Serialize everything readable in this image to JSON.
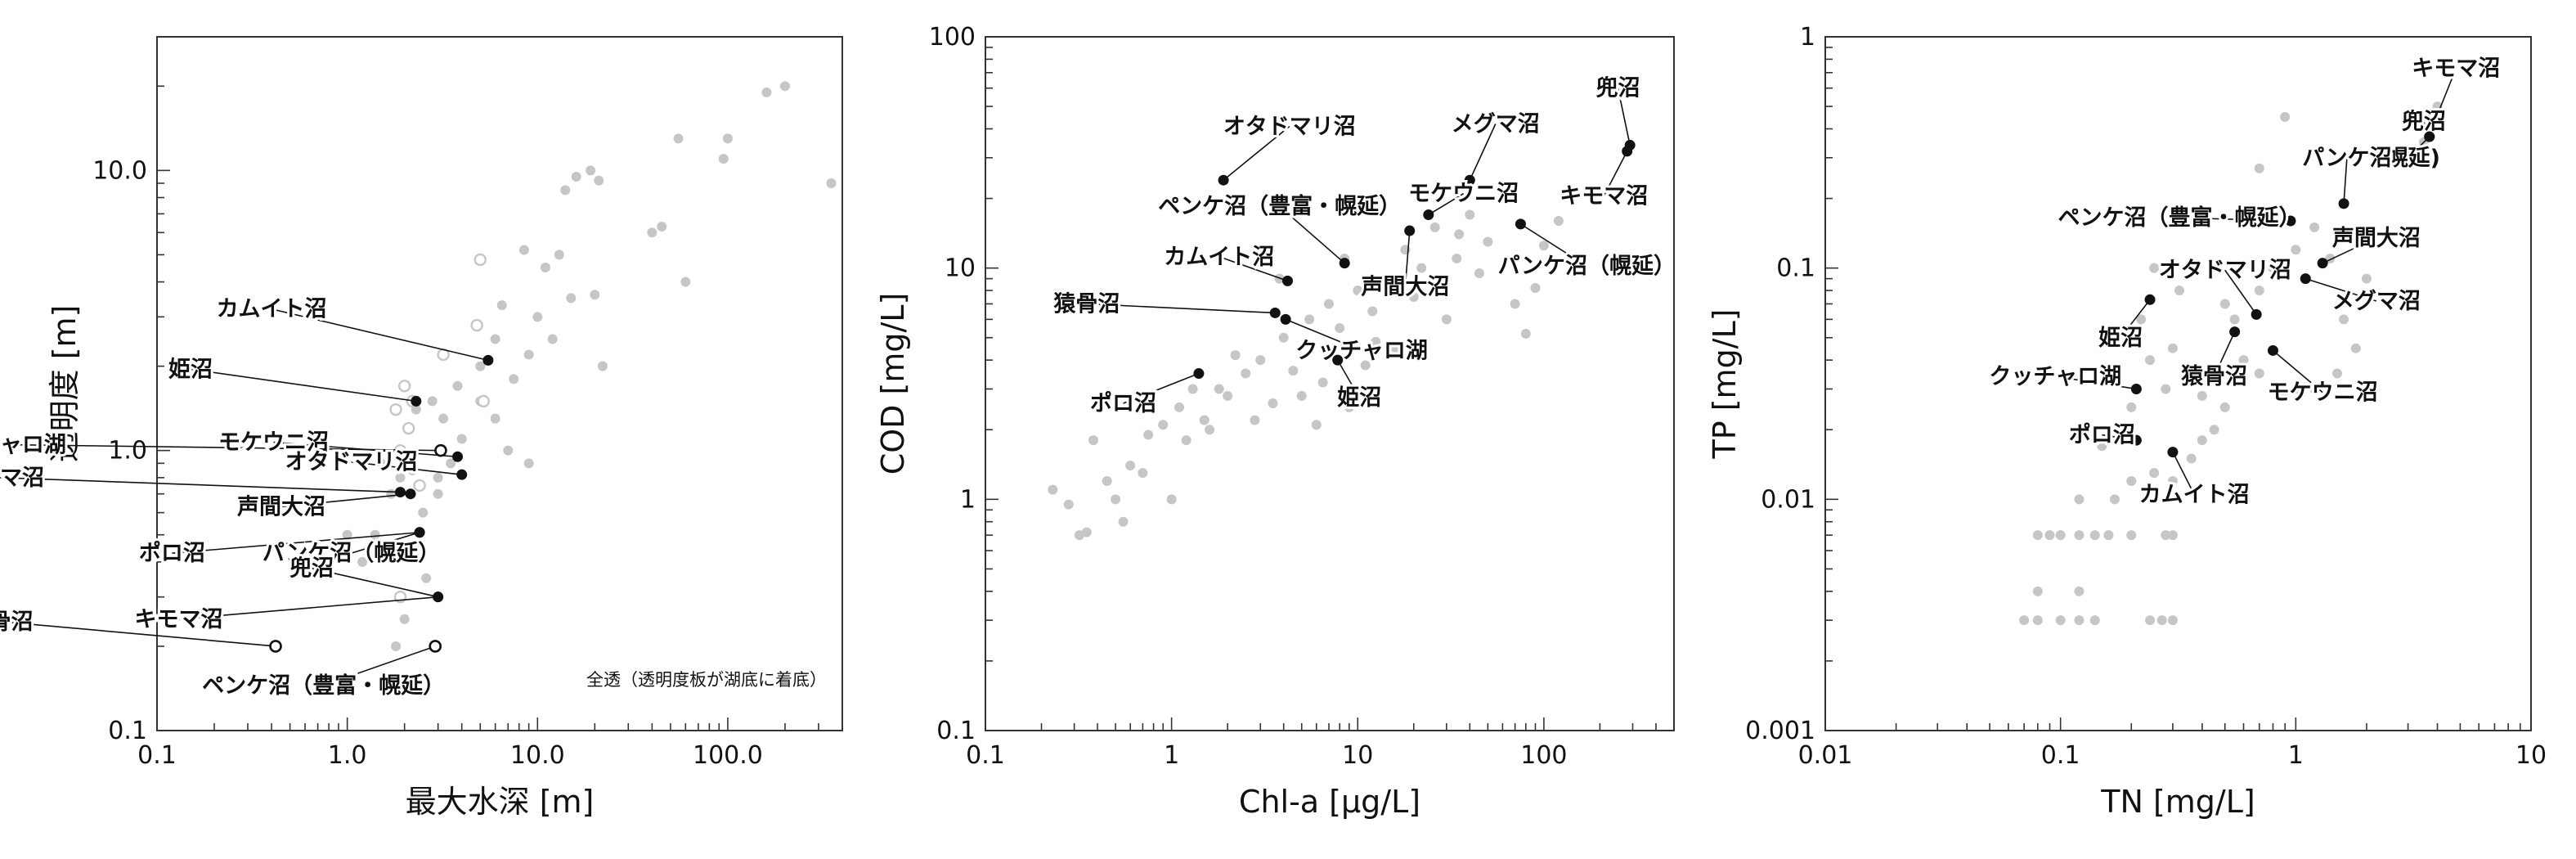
{
  "colors": {
    "highlight": "#111111",
    "background_points": "#c6c6c6",
    "axis": "#333333"
  },
  "chart_data": [
    {
      "type": "scatter",
      "title": "",
      "xlabel": "最大水深 [m]",
      "ylabel": "透明度 [m]",
      "xscale": "log",
      "yscale": "log",
      "xlim": [
        0.1,
        400
      ],
      "ylim": [
        0.1,
        30
      ],
      "xticks": [
        0.1,
        1,
        10,
        100
      ],
      "xtick_labels": [
        "0.1",
        "1.0",
        "10.0",
        "100.0"
      ],
      "yticks": [
        0.1,
        1,
        10
      ],
      "ytick_labels": [
        "0.1",
        "1.0",
        "10.0"
      ],
      "note": "全透（透明度板が湖底に着底）",
      "background_points": [
        [
          1.4,
          0.5
        ],
        [
          1.5,
          0.9
        ],
        [
          1.7,
          0.7
        ],
        [
          1.9,
          0.8
        ],
        [
          2.2,
          0.85
        ],
        [
          2.5,
          0.6
        ],
        [
          3.0,
          0.7
        ],
        [
          3.5,
          0.9
        ],
        [
          4.0,
          1.1
        ],
        [
          3.2,
          1.3
        ],
        [
          2.3,
          1.4
        ],
        [
          2.8,
          1.5
        ],
        [
          3.8,
          1.7
        ],
        [
          5.0,
          1.5
        ],
        [
          6.0,
          1.3
        ],
        [
          7.5,
          1.8
        ],
        [
          9.0,
          2.2
        ],
        [
          10.0,
          3.0
        ],
        [
          12.0,
          2.5
        ],
        [
          15.0,
          3.5
        ],
        [
          16.0,
          9.5
        ],
        [
          19.0,
          10.0
        ],
        [
          21.0,
          9.2
        ],
        [
          14.0,
          8.5
        ],
        [
          13.0,
          5.0
        ],
        [
          11.0,
          4.5
        ],
        [
          8.5,
          5.2
        ],
        [
          6.5,
          3.3
        ],
        [
          7.0,
          1.0
        ],
        [
          9.0,
          0.9
        ],
        [
          22.0,
          2.0
        ],
        [
          20.0,
          3.6
        ],
        [
          40.0,
          6.0
        ],
        [
          45.0,
          6.3
        ],
        [
          55.0,
          13.0
        ],
        [
          60.0,
          4.0
        ],
        [
          95.0,
          11.0
        ],
        [
          100.0,
          13.0
        ],
        [
          160.0,
          19.0
        ],
        [
          200.0,
          20.0
        ],
        [
          350.0,
          9.0
        ],
        [
          1.8,
          0.2
        ],
        [
          2.0,
          0.25
        ],
        [
          1.0,
          0.5
        ],
        [
          1.2,
          0.4
        ],
        [
          1.9,
          0.45
        ],
        [
          2.6,
          0.35
        ],
        [
          3.0,
          0.8
        ],
        [
          5.0,
          2.0
        ],
        [
          6.0,
          2.5
        ]
      ],
      "open_points": [
        [
          1.9,
          1.0
        ],
        [
          2.1,
          1.2
        ],
        [
          1.8,
          1.4
        ],
        [
          2.2,
          1.5
        ],
        [
          2.0,
          1.7
        ],
        [
          3.2,
          2.2
        ],
        [
          4.8,
          2.8
        ],
        [
          2.4,
          0.75
        ],
        [
          1.9,
          0.3
        ],
        [
          5.0,
          4.8
        ],
        [
          5.2,
          1.5
        ]
      ],
      "highlight_points": [
        {
          "label": "カムイト沼",
          "x": 5.5,
          "y": 2.1,
          "tx": 0.4,
          "ty": 3.2,
          "anchor": "middle",
          "open": false
        },
        {
          "label": "姫沼",
          "x": 2.3,
          "y": 1.5,
          "tx": 0.15,
          "ty": 1.95,
          "anchor": "middle",
          "open": false
        },
        {
          "label": "モケウニ沼",
          "x": 3.8,
          "y": 0.95,
          "tx": 0.41,
          "ty": 1.07,
          "anchor": "middle",
          "open": false
        },
        {
          "label": "クッチャロ湖",
          "x": 3.1,
          "y": 1.0,
          "tx": -0.29,
          "ty": 1.05,
          "anchor": "middle",
          "open": true
        },
        {
          "label": "オタドマリ沼",
          "x": 4.0,
          "y": 0.82,
          "tx": 1.05,
          "ty": 0.91,
          "anchor": "middle",
          "open": false
        },
        {
          "label": "メグマ沼",
          "x": 1.9,
          "y": 0.71,
          "tx": -0.04,
          "ty": 0.8,
          "anchor": "middle",
          "open": false
        },
        {
          "label": "声間大沼",
          "x": 2.15,
          "y": 0.7,
          "tx": 0.45,
          "ty": 0.63,
          "anchor": "middle",
          "open": false
        },
        {
          "label": "パンケ沼（幌延）",
          "x": 2.4,
          "y": 0.51,
          "tx": 1.05,
          "ty": 0.43,
          "anchor": "middle",
          "open": false
        },
        {
          "label": "ポロ沼",
          "x": 2.4,
          "y": 0.51,
          "tx": 0.12,
          "ty": 0.43,
          "anchor": "middle",
          "open": false
        },
        {
          "label": "兜沼",
          "x": 3.0,
          "y": 0.3,
          "tx": 0.65,
          "ty": 0.38,
          "anchor": "middle",
          "open": false
        },
        {
          "label": "キモマ沼",
          "x": 3.0,
          "y": 0.3,
          "tx": 0.13,
          "ty": 0.25,
          "anchor": "middle",
          "open": false
        },
        {
          "label": "猿骨沼",
          "x": 0.42,
          "y": 0.2,
          "tx": -0.56,
          "ty": 0.245,
          "anchor": "middle",
          "open": true
        },
        {
          "label": "ペンケ沼（豊富・幌延）",
          "x": 2.9,
          "y": 0.2,
          "tx": 0.75,
          "ty": 0.145,
          "anchor": "middle",
          "open": true
        }
      ]
    },
    {
      "type": "scatter",
      "title": "",
      "xlabel": "Chl-a [μg/L]",
      "ylabel": "COD [mg/L]",
      "xscale": "log",
      "yscale": "log",
      "xlim": [
        0.1,
        500
      ],
      "ylim": [
        0.1,
        100
      ],
      "xticks": [
        0.1,
        1,
        10,
        100
      ],
      "xtick_labels": [
        "0.1",
        "1",
        "10",
        "100"
      ],
      "yticks": [
        0.1,
        1,
        10,
        100
      ],
      "ytick_labels": [
        "0.1",
        "1",
        "10",
        "100"
      ],
      "background_points": [
        [
          0.23,
          1.1
        ],
        [
          0.28,
          0.95
        ],
        [
          0.32,
          0.7
        ],
        [
          0.38,
          1.8
        ],
        [
          0.45,
          1.2
        ],
        [
          0.5,
          1.0
        ],
        [
          0.55,
          0.8
        ],
        [
          0.6,
          1.4
        ],
        [
          0.7,
          1.3
        ],
        [
          0.75,
          1.9
        ],
        [
          0.9,
          2.1
        ],
        [
          1.0,
          1.0
        ],
        [
          1.1,
          2.5
        ],
        [
          1.2,
          1.8
        ],
        [
          1.5,
          2.2
        ],
        [
          1.8,
          3.0
        ],
        [
          2.0,
          2.8
        ],
        [
          2.5,
          3.5
        ],
        [
          2.8,
          2.2
        ],
        [
          3.0,
          4.0
        ],
        [
          3.5,
          2.6
        ],
        [
          4.0,
          5.0
        ],
        [
          4.5,
          3.6
        ],
        [
          5.0,
          2.8
        ],
        [
          5.5,
          6.0
        ],
        [
          6.0,
          2.1
        ],
        [
          7.0,
          7.0
        ],
        [
          8.0,
          5.5
        ],
        [
          9.0,
          2.5
        ],
        [
          10.0,
          8.0
        ],
        [
          11.0,
          3.8
        ],
        [
          12.0,
          6.5
        ],
        [
          14.0,
          9.0
        ],
        [
          16.0,
          4.5
        ],
        [
          18.0,
          12.0
        ],
        [
          20.0,
          7.5
        ],
        [
          22.0,
          10.0
        ],
        [
          26.0,
          15.0
        ],
        [
          30.0,
          6.0
        ],
        [
          34.0,
          11.0
        ],
        [
          40.0,
          17.0
        ],
        [
          45.0,
          9.5
        ],
        [
          50.0,
          13.0
        ],
        [
          60.0,
          20.0
        ],
        [
          70.0,
          7.0
        ],
        [
          80.0,
          5.2
        ],
        [
          90.0,
          8.2
        ],
        [
          100.0,
          12.5
        ],
        [
          120.0,
          16.0
        ],
        [
          150.0,
          21.0
        ],
        [
          8.5,
          11.0
        ],
        [
          3.8,
          9.0
        ],
        [
          1.3,
          3.0
        ],
        [
          2.2,
          4.2
        ],
        [
          6.5,
          3.2
        ],
        [
          12.5,
          4.8
        ],
        [
          15.0,
          8.5
        ],
        [
          35.0,
          14.0
        ],
        [
          0.35,
          0.72
        ],
        [
          1.6,
          2.0
        ]
      ],
      "open_points": [],
      "highlight_points": [
        {
          "label": "兜沼",
          "x": 290,
          "y": 34,
          "tx": 250,
          "ty": 60,
          "anchor": "middle",
          "open": false
        },
        {
          "label": "キモマ沼",
          "x": 280,
          "y": 32,
          "tx": 210,
          "ty": 20.5,
          "anchor": "middle",
          "open": false
        },
        {
          "label": "オタドマリ沼",
          "x": 1.9,
          "y": 24,
          "tx": 4.3,
          "ty": 41,
          "anchor": "middle",
          "open": false
        },
        {
          "label": "メグマ沼",
          "x": 40,
          "y": 24,
          "tx": 55,
          "ty": 42,
          "anchor": "middle",
          "open": false
        },
        {
          "label": "ペンケ沼（豊富・幌延）",
          "x": 8.5,
          "y": 10.5,
          "tx": 3.8,
          "ty": 18.5,
          "anchor": "middle",
          "open": false
        },
        {
          "label": "モケウニ沼",
          "x": 24,
          "y": 17,
          "tx": 37,
          "ty": 21,
          "anchor": "middle",
          "open": false
        },
        {
          "label": "パンケ沼（幌延）",
          "x": 75,
          "y": 15.5,
          "tx": 170,
          "ty": 10.2,
          "anchor": "middle",
          "open": false
        },
        {
          "label": "カムイト沼",
          "x": 4.2,
          "y": 8.8,
          "tx": 1.8,
          "ty": 11.2,
          "anchor": "middle",
          "open": false
        },
        {
          "label": "声間大沼",
          "x": 19,
          "y": 14.5,
          "tx": 18,
          "ty": 8.3,
          "anchor": "middle",
          "open": false
        },
        {
          "label": "猿骨沼",
          "x": 3.6,
          "y": 6.4,
          "tx": 0.35,
          "ty": 7.0,
          "anchor": "middle",
          "open": false
        },
        {
          "label": "クッチャロ湖",
          "x": 4.1,
          "y": 6.0,
          "tx": 10.5,
          "ty": 4.4,
          "anchor": "middle",
          "open": false
        },
        {
          "label": "姫沼",
          "x": 7.8,
          "y": 4.0,
          "tx": 10.2,
          "ty": 2.75,
          "anchor": "middle",
          "open": false
        },
        {
          "label": "ポロ沼",
          "x": 1.4,
          "y": 3.5,
          "tx": 0.55,
          "ty": 2.6,
          "anchor": "middle",
          "open": false
        }
      ]
    },
    {
      "type": "scatter",
      "title": "",
      "xlabel": "TN [mg/L]",
      "ylabel": "TP [mg/L]",
      "xscale": "log",
      "yscale": "log",
      "xlim": [
        0.01,
        10
      ],
      "ylim": [
        0.001,
        1
      ],
      "xticks": [
        0.01,
        0.1,
        1,
        10
      ],
      "xtick_labels": [
        "0.01",
        "0.1",
        "1",
        "10"
      ],
      "yticks": [
        0.001,
        0.01,
        0.1,
        1
      ],
      "ytick_labels": [
        "0.001",
        "0.01",
        "0.1",
        "1"
      ],
      "background_points": [
        [
          0.07,
          0.003
        ],
        [
          0.08,
          0.003
        ],
        [
          0.1,
          0.003
        ],
        [
          0.12,
          0.003
        ],
        [
          0.14,
          0.003
        ],
        [
          0.24,
          0.003
        ],
        [
          0.27,
          0.003
        ],
        [
          0.3,
          0.003
        ],
        [
          0.08,
          0.004
        ],
        [
          0.12,
          0.004
        ],
        [
          0.08,
          0.007
        ],
        [
          0.09,
          0.007
        ],
        [
          0.1,
          0.007
        ],
        [
          0.12,
          0.007
        ],
        [
          0.14,
          0.007
        ],
        [
          0.16,
          0.007
        ],
        [
          0.2,
          0.007
        ],
        [
          0.28,
          0.007
        ],
        [
          0.3,
          0.007
        ],
        [
          0.12,
          0.01
        ],
        [
          0.17,
          0.01
        ],
        [
          0.2,
          0.012
        ],
        [
          0.25,
          0.013
        ],
        [
          0.3,
          0.012
        ],
        [
          0.36,
          0.015
        ],
        [
          0.4,
          0.018
        ],
        [
          0.45,
          0.02
        ],
        [
          0.15,
          0.017
        ],
        [
          0.18,
          0.02
        ],
        [
          0.2,
          0.025
        ],
        [
          0.28,
          0.03
        ],
        [
          0.35,
          0.032
        ],
        [
          0.4,
          0.028
        ],
        [
          0.5,
          0.025
        ],
        [
          0.6,
          0.04
        ],
        [
          0.7,
          0.035
        ],
        [
          0.8,
          0.03
        ],
        [
          0.9,
          0.028
        ],
        [
          1.0,
          0.03
        ],
        [
          1.2,
          0.03
        ],
        [
          1.5,
          0.035
        ],
        [
          2.0,
          0.028
        ],
        [
          1.8,
          0.045
        ],
        [
          0.5,
          0.07
        ],
        [
          0.7,
          0.08
        ],
        [
          0.8,
          0.1
        ],
        [
          1.0,
          0.12
        ],
        [
          1.2,
          0.15
        ],
        [
          1.4,
          0.11
        ],
        [
          2.0,
          0.09
        ],
        [
          1.6,
          0.06
        ],
        [
          0.55,
          0.06
        ],
        [
          0.3,
          0.045
        ],
        [
          0.32,
          0.08
        ],
        [
          0.25,
          0.1
        ],
        [
          0.9,
          0.45
        ],
        [
          3.0,
          0.3
        ],
        [
          4.0,
          0.5
        ],
        [
          3.5,
          0.35
        ],
        [
          0.7,
          0.27
        ],
        [
          0.24,
          0.04
        ],
        [
          0.22,
          0.06
        ]
      ],
      "open_points": [],
      "highlight_points": [
        {
          "label": "キモマ沼",
          "x": 4.0,
          "y": 0.46,
          "tx": 4.8,
          "ty": 0.73,
          "anchor": "middle",
          "open": false
        },
        {
          "label": "兜沼",
          "x": 3.7,
          "y": 0.37,
          "tx": 3.5,
          "ty": 0.43,
          "anchor": "middle",
          "open": false
        },
        {
          "label": "(幌延)",
          "x": 3.7,
          "y": 0.37,
          "tx": 3.0,
          "ty": 0.3,
          "anchor": "middle",
          "open": false
        },
        {
          "label": "パンケ沼",
          "x": 1.6,
          "y": 0.19,
          "tx": 1.65,
          "ty": 0.3,
          "anchor": "middle",
          "open": false
        },
        {
          "label": "ペンケ沼（豊富・幌延）",
          "x": 0.95,
          "y": 0.16,
          "tx": 0.32,
          "ty": 0.165,
          "anchor": "middle",
          "open": false
        },
        {
          "label": "声間大沼",
          "x": 1.3,
          "y": 0.105,
          "tx": 2.2,
          "ty": 0.135,
          "anchor": "middle",
          "open": false
        },
        {
          "label": "メグマ沼",
          "x": 1.1,
          "y": 0.09,
          "tx": 2.2,
          "ty": 0.072,
          "anchor": "middle",
          "open": false
        },
        {
          "label": "オタドマリ沼",
          "x": 0.68,
          "y": 0.063,
          "tx": 0.5,
          "ty": 0.098,
          "anchor": "middle",
          "open": false
        },
        {
          "label": "姫沼",
          "x": 0.24,
          "y": 0.073,
          "tx": 0.18,
          "ty": 0.05,
          "anchor": "middle",
          "open": false
        },
        {
          "label": "猿骨沼",
          "x": 0.55,
          "y": 0.053,
          "tx": 0.45,
          "ty": 0.034,
          "anchor": "middle",
          "open": false
        },
        {
          "label": "モケウニ沼",
          "x": 0.8,
          "y": 0.044,
          "tx": 1.3,
          "ty": 0.029,
          "anchor": "middle",
          "open": false
        },
        {
          "label": "クッチャロ湖",
          "x": 0.21,
          "y": 0.03,
          "tx": 0.095,
          "ty": 0.034,
          "anchor": "middle",
          "open": false
        },
        {
          "label": "ポロ沼",
          "x": 0.21,
          "y": 0.018,
          "tx": 0.15,
          "ty": 0.019,
          "anchor": "middle",
          "open": false
        },
        {
          "label": "カムイト沼",
          "x": 0.3,
          "y": 0.016,
          "tx": 0.37,
          "ty": 0.0105,
          "anchor": "middle",
          "open": false
        }
      ]
    }
  ]
}
